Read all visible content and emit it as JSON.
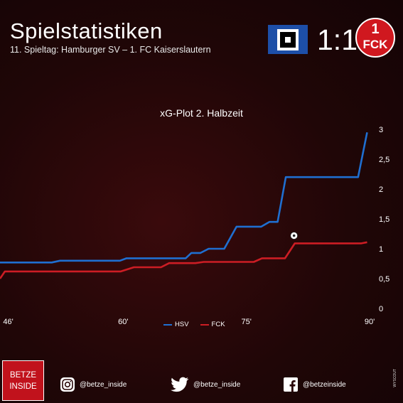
{
  "header": {
    "title": "Spielstatistiken",
    "subtitle": "11. Spieltag: Hamburger SV – 1. FC Kaiserslautern",
    "score": "1:1",
    "home_logo_icon": "hsv-crest-icon",
    "away_logo_text": "FCK",
    "away_logo_number": "1"
  },
  "chart_data": {
    "type": "line",
    "title": "xG-Plot 2. Halbzeit",
    "xlabel": "",
    "ylabel": "",
    "xlim": [
      45,
      90
    ],
    "ylim": [
      0,
      3
    ],
    "x_ticks": [
      "46'",
      "60'",
      "75'",
      "90'"
    ],
    "x_tick_values": [
      46,
      60,
      75,
      90
    ],
    "y_ticks": [
      "0",
      "0,5",
      "1",
      "1,5",
      "2",
      "2,5",
      "3"
    ],
    "y_tick_values": [
      0,
      0.5,
      1,
      1.5,
      2,
      2.5,
      3
    ],
    "grid": false,
    "legend": "bottom-center",
    "series": [
      {
        "name": "HSV",
        "color": "#1f6fd1",
        "points": [
          [
            45,
            0.77
          ],
          [
            51.3,
            0.77
          ],
          [
            52.3,
            0.8
          ],
          [
            59.6,
            0.8
          ],
          [
            60.4,
            0.84
          ],
          [
            67.6,
            0.84
          ],
          [
            68.3,
            0.93
          ],
          [
            69.4,
            0.93
          ],
          [
            70.4,
            1.0
          ],
          [
            72.3,
            1.0
          ],
          [
            73.8,
            1.37
          ],
          [
            76.8,
            1.37
          ],
          [
            77.8,
            1.45
          ],
          [
            78.8,
            1.45
          ],
          [
            79.8,
            2.2
          ],
          [
            88.6,
            2.2
          ],
          [
            89.7,
            2.95
          ]
        ]
      },
      {
        "name": "FCK",
        "color": "#cc1d24",
        "points": [
          [
            45,
            0.5
          ],
          [
            45.6,
            0.62
          ],
          [
            59.7,
            0.62
          ],
          [
            61.3,
            0.69
          ],
          [
            64.6,
            0.69
          ],
          [
            65.6,
            0.76
          ],
          [
            68.8,
            0.76
          ],
          [
            69.8,
            0.78
          ],
          [
            75.9,
            0.78
          ],
          [
            76.9,
            0.84
          ],
          [
            79.7,
            0.84
          ],
          [
            80.9,
            1.09
          ],
          [
            89,
            1.09
          ],
          [
            89.7,
            1.11
          ]
        ]
      }
    ],
    "annotation_icon": "football-icon",
    "annotation_at": [
      80.8,
      1.22
    ]
  },
  "footer": {
    "brand_line1": "BETZE",
    "brand_line2": "INSIDE",
    "instagram": "@betze_inside",
    "twitter": "@betze_inside",
    "facebook": "@betzeinside",
    "vertical_text": "WYSCOUT"
  }
}
